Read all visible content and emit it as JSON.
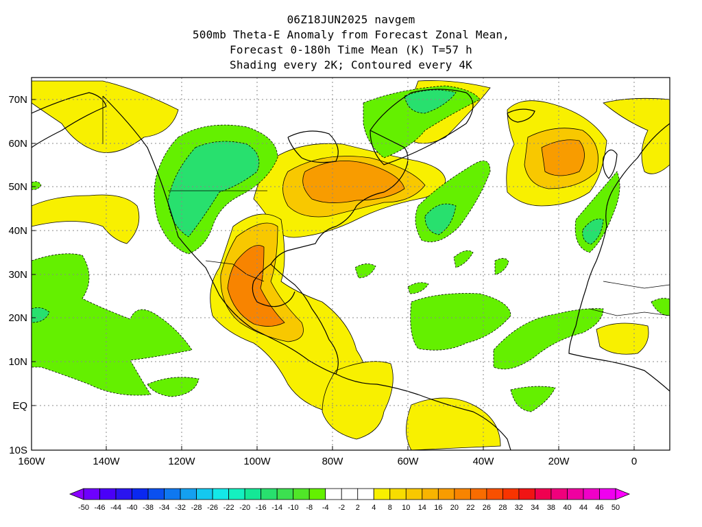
{
  "header": {
    "lines": [
      "06Z18JUN2025 navgem",
      "500mb Theta-E Anomaly from Forecast Zonal Mean,",
      "Forecast 0-180h Time Mean (K) T=57 h",
      "Shading every 2K; Contoured every 4K"
    ]
  },
  "axes": {
    "lat_labels": [
      "70N",
      "60N",
      "50N",
      "40N",
      "30N",
      "20N",
      "10N",
      "EQ",
      "10S"
    ],
    "lon_labels": [
      "160W",
      "140W",
      "120W",
      "100W",
      "80W",
      "60W",
      "40W",
      "20W",
      "0"
    ]
  },
  "colorbar": {
    "labels": [
      "-50",
      "-46",
      "-44",
      "-40",
      "-38",
      "-34",
      "-32",
      "-28",
      "-26",
      "-22",
      "-20",
      "-16",
      "-14",
      "-10",
      "-8",
      "-4",
      "-2",
      "2",
      "4",
      "8",
      "10",
      "14",
      "16",
      "20",
      "22",
      "26",
      "28",
      "32",
      "34",
      "38",
      "40",
      "44",
      "46",
      "50"
    ],
    "colors": [
      "#8a00ff",
      "#6e00ff",
      "#4a00f8",
      "#2a14f0",
      "#0a28f0",
      "#0a50f0",
      "#0f78f0",
      "#14a0f0",
      "#14c8f0",
      "#14e8e8",
      "#14f0c0",
      "#14e896",
      "#28e06e",
      "#3ce050",
      "#50e628",
      "#64f000",
      "#ffffff",
      "#ffffff",
      "#ffffff",
      "#f8f000",
      "#f8dc00",
      "#f8c800",
      "#f8b400",
      "#f89c00",
      "#f88400",
      "#f86c00",
      "#f85000",
      "#f83400",
      "#f01414",
      "#f00050",
      "#f0007c",
      "#f000a0",
      "#f000c8",
      "#f000f0",
      "#ff00ff"
    ]
  },
  "legend_colors": {
    "green": "#64f000",
    "green_med": "#28e06e",
    "yellow": "#f8f000",
    "gold": "#f8c800",
    "orange": "#f89c00",
    "dark_orange": "#f88400"
  }
}
